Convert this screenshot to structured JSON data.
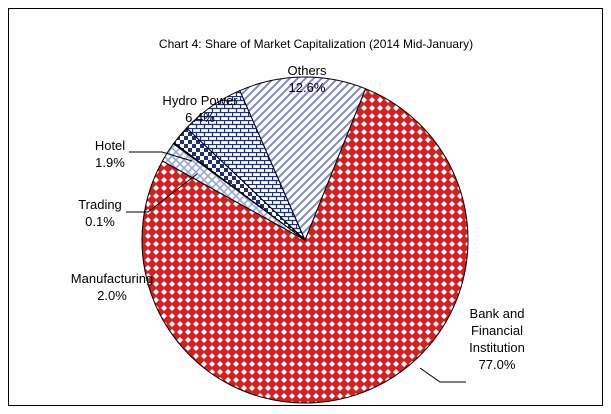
{
  "chart_data": {
    "type": "pie",
    "title": "Chart 4: Share of Market Capitalization (2014 Mid-January)",
    "categories": [
      "Bank and Financial Institution",
      "Manufacturing",
      "Trading",
      "Hotel",
      "Hydro Power",
      "Others"
    ],
    "values": [
      77.0,
      2.0,
      0.1,
      1.9,
      6.4,
      12.6
    ],
    "value_labels": [
      "77.0%",
      "2.0%",
      "0.1%",
      "1.9%",
      "6.4%",
      "12.6%"
    ],
    "colors": [
      "#d42020",
      "#8ea6d8",
      "#ffffff",
      "#1f2f7a",
      "#1f2f7a",
      "#8088c8"
    ]
  }
}
